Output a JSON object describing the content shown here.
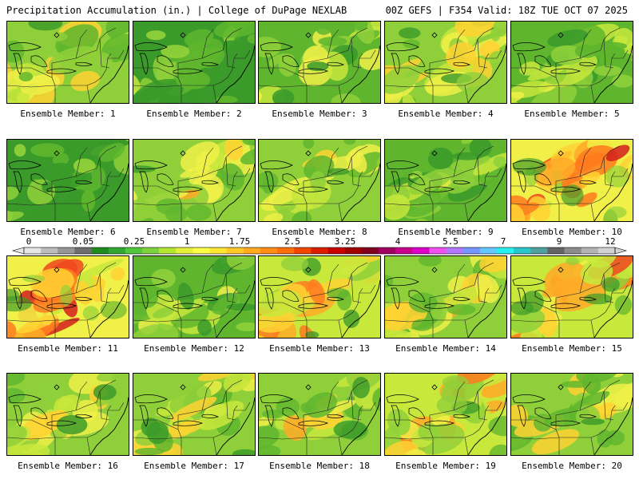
{
  "header": {
    "title": "Precipitation Accumulation (in.) | College of DuPage NEXLAB",
    "run_info": "00Z GEFS | F354 Valid: 18Z TUE OCT 07 2025"
  },
  "panels": [
    {
      "label": "Ensemble Member: 1",
      "intensity": 0.45
    },
    {
      "label": "Ensemble Member: 2",
      "intensity": 0.15
    },
    {
      "label": "Ensemble Member: 3",
      "intensity": 0.35
    },
    {
      "label": "Ensemble Member: 4",
      "intensity": 0.5
    },
    {
      "label": "Ensemble Member: 5",
      "intensity": 0.3
    },
    {
      "label": "Ensemble Member: 6",
      "intensity": 0.15
    },
    {
      "label": "Ensemble Member: 7",
      "intensity": 0.5
    },
    {
      "label": "Ensemble Member: 8",
      "intensity": 0.45
    },
    {
      "label": "Ensemble Member: 9",
      "intensity": 0.35
    },
    {
      "label": "Ensemble Member: 10",
      "intensity": 0.85
    },
    {
      "label": "Ensemble Member: 11",
      "intensity": 0.85
    },
    {
      "label": "Ensemble Member: 12",
      "intensity": 0.3
    },
    {
      "label": "Ensemble Member: 13",
      "intensity": 0.6
    },
    {
      "label": "Ensemble Member: 14",
      "intensity": 0.5
    },
    {
      "label": "Ensemble Member: 15",
      "intensity": 0.75
    },
    {
      "label": "Ensemble Member: 16",
      "intensity": 0.4
    },
    {
      "label": "Ensemble Member: 17",
      "intensity": 0.45
    },
    {
      "label": "Ensemble Member: 18",
      "intensity": 0.5
    },
    {
      "label": "Ensemble Member: 19",
      "intensity": 0.6
    },
    {
      "label": "Ensemble Member: 20",
      "intensity": 0.45
    }
  ],
  "colorbar": {
    "tick_labels": [
      "0",
      "0.05",
      "0.25",
      "1",
      "1.75",
      "2.5",
      "3.25",
      "4",
      "5.5",
      "7",
      "9",
      "12"
    ],
    "colors": [
      "#e6e6e6",
      "#bdbdbd",
      "#969696",
      "#6e6e6e",
      "#1e8c1e",
      "#32a832",
      "#50c83c",
      "#7ed23c",
      "#b4e632",
      "#e6f03c",
      "#ffff46",
      "#ffe632",
      "#ffc828",
      "#ffaa1e",
      "#ff8c14",
      "#ff6e0a",
      "#f04600",
      "#dc1e00",
      "#c80000",
      "#a00000",
      "#800020",
      "#a00060",
      "#c8008c",
      "#dc00c8",
      "#f050f0",
      "#b478ff",
      "#7896ff",
      "#64c8ff",
      "#28f0f0",
      "#28c8c8",
      "#50a0a0",
      "#646464",
      "#8c8c8c",
      "#b4b4b4",
      "#d2d2d2"
    ]
  }
}
